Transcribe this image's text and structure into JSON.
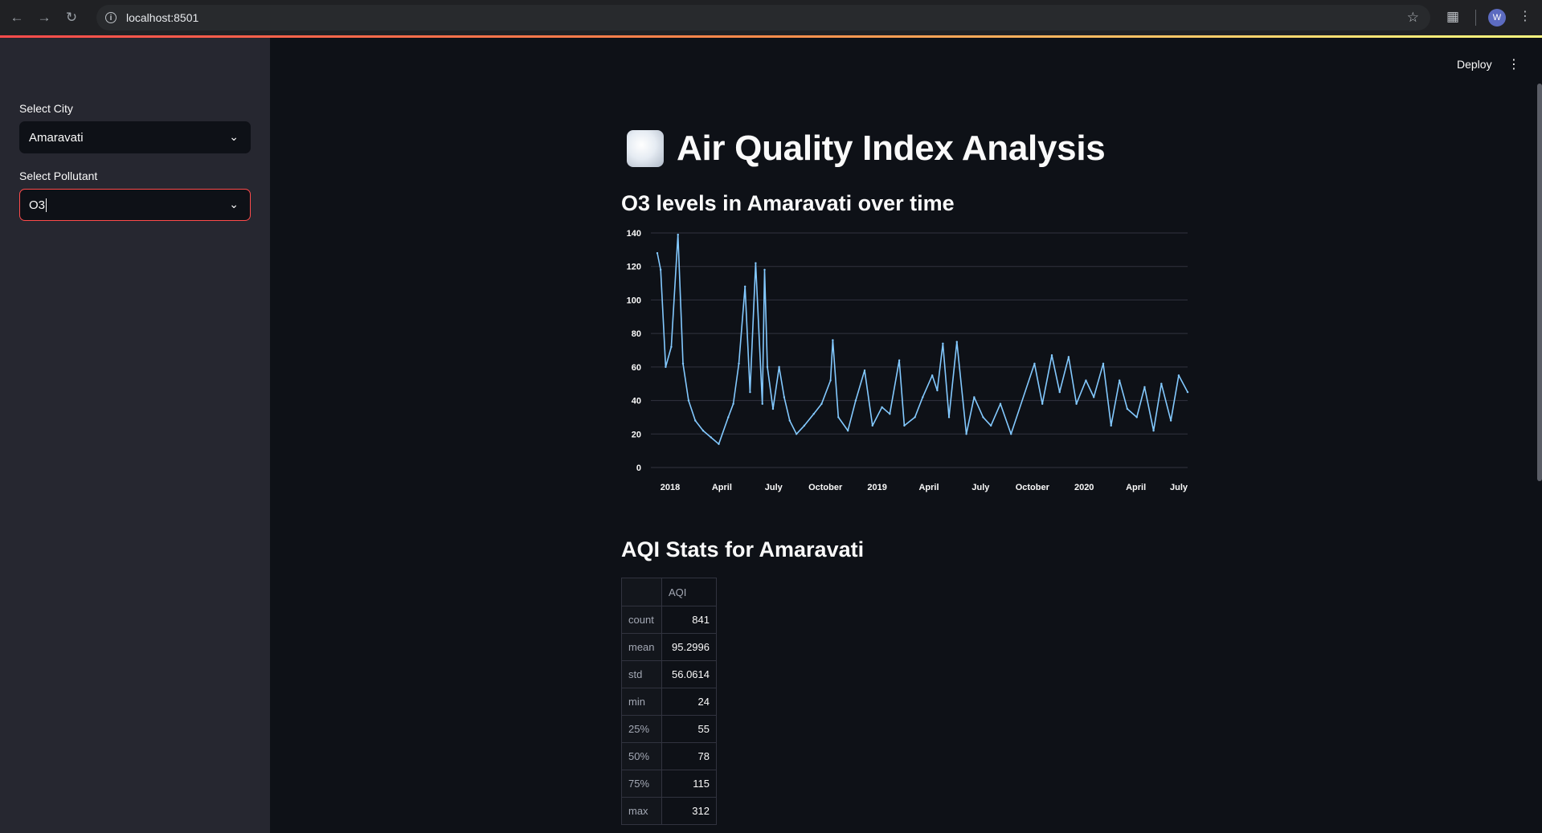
{
  "browser": {
    "url": "localhost:8501",
    "profile_initial": "W"
  },
  "sidebar": {
    "city_label": "Select City",
    "city_value": "Amaravati",
    "pollutant_label": "Select Pollutant",
    "pollutant_value": "O3"
  },
  "header": {
    "deploy_label": "Deploy"
  },
  "main": {
    "title": "Air Quality Index Analysis",
    "chart_heading": "O3 levels in Amaravati over time",
    "stats_heading": "AQI Stats for Amaravati"
  },
  "chart_data": {
    "type": "line",
    "title": "",
    "xlabel": "",
    "ylabel": "",
    "ylim": [
      0,
      140
    ],
    "yticks": [
      0,
      20,
      40,
      60,
      80,
      100,
      120,
      140
    ],
    "xticks": [
      "2018",
      "April",
      "July",
      "October",
      "2019",
      "April",
      "July",
      "October",
      "2020",
      "April",
      "July"
    ],
    "grid": true,
    "color": "#83c9ff",
    "series": [
      {
        "x": [
          "2017-11-25",
          "2017-12-01",
          "2017-12-10",
          "2017-12-20",
          "2018-01-01",
          "2018-01-10",
          "2018-01-20",
          "2018-02-01",
          "2018-02-15",
          "2018-03-01",
          "2018-03-15",
          "2018-04-01",
          "2018-04-10",
          "2018-04-20",
          "2018-05-01",
          "2018-05-10",
          "2018-05-20",
          "2018-06-01",
          "2018-06-05",
          "2018-06-10",
          "2018-06-20",
          "2018-07-01",
          "2018-07-10",
          "2018-07-20",
          "2018-08-01",
          "2018-08-15",
          "2018-09-01",
          "2018-09-15",
          "2018-10-01",
          "2018-10-05",
          "2018-10-15",
          "2018-11-01",
          "2018-11-15",
          "2018-12-01",
          "2018-12-15",
          "2019-01-01",
          "2019-01-15",
          "2019-02-01",
          "2019-02-10",
          "2019-03-01",
          "2019-03-15",
          "2019-04-01",
          "2019-04-10",
          "2019-04-20",
          "2019-05-01",
          "2019-05-15",
          "2019-06-01",
          "2019-06-15",
          "2019-07-01",
          "2019-07-15",
          "2019-08-01",
          "2019-08-20",
          "2019-10-01",
          "2019-10-15",
          "2019-11-01",
          "2019-11-15",
          "2019-12-01",
          "2019-12-15",
          "2020-01-01",
          "2020-01-15",
          "2020-02-01",
          "2020-02-15",
          "2020-03-01",
          "2020-03-15",
          "2020-04-01",
          "2020-04-15",
          "2020-05-01",
          "2020-05-15",
          "2020-06-01",
          "2020-06-15",
          "2020-07-01"
        ],
        "values": [
          128,
          118,
          60,
          72,
          139,
          62,
          40,
          28,
          22,
          18,
          14,
          30,
          38,
          62,
          108,
          45,
          122,
          38,
          118,
          60,
          35,
          60,
          42,
          28,
          20,
          25,
          32,
          38,
          52,
          76,
          30,
          22,
          40,
          58,
          25,
          36,
          32,
          64,
          25,
          30,
          42,
          55,
          46,
          74,
          30,
          75,
          20,
          42,
          30,
          25,
          38,
          20,
          62,
          38,
          67,
          45,
          66,
          38,
          52,
          42,
          62,
          25,
          52,
          35,
          30,
          48,
          22,
          50,
          28,
          55,
          45
        ]
      }
    ]
  },
  "stats_table": {
    "column": "AQI",
    "rows": [
      {
        "label": "count",
        "value": "841"
      },
      {
        "label": "mean",
        "value": "95.2996"
      },
      {
        "label": "std",
        "value": "56.0614"
      },
      {
        "label": "min",
        "value": "24"
      },
      {
        "label": "25%",
        "value": "55"
      },
      {
        "label": "50%",
        "value": "78"
      },
      {
        "label": "75%",
        "value": "115"
      },
      {
        "label": "max",
        "value": "312"
      }
    ]
  }
}
